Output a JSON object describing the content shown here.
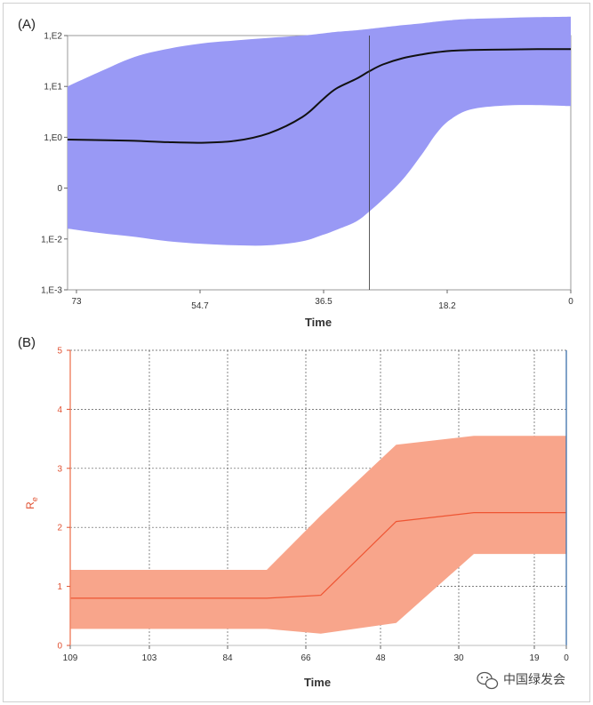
{
  "chart_data": [
    {
      "panel_label": "(A)",
      "type": "area",
      "scale": "log",
      "xlabel": "Time",
      "x_reversed": true,
      "x_ticks": [
        "73",
        "54.7",
        "36.5",
        "18.2",
        "0"
      ],
      "y_ticks": [
        "1,E-3",
        "1,E-2",
        "0",
        "1,E0",
        "1,E1",
        "1,E2"
      ],
      "ylim": [
        0.001,
        100
      ],
      "xlim": [
        75,
        0
      ],
      "vertical_line_x": 30,
      "colors": {
        "band": "#9999f5",
        "median": "#111111"
      },
      "series": [
        {
          "x": [
            75,
            70,
            65,
            60,
            55,
            50,
            45,
            40,
            37,
            35,
            32,
            30,
            28,
            25,
            22,
            20,
            18,
            15,
            10,
            5,
            0
          ],
          "median": [
            0.9,
            0.88,
            0.85,
            0.8,
            0.78,
            0.85,
            1.2,
            2.5,
            5.5,
            9,
            14,
            20,
            27,
            36,
            43,
            47,
            50,
            52,
            53,
            54,
            54
          ],
          "lower": [
            0.016,
            0.013,
            0.011,
            0.009,
            0.008,
            0.0075,
            0.0075,
            0.009,
            0.012,
            0.015,
            0.022,
            0.035,
            0.06,
            0.15,
            0.5,
            1.2,
            2.2,
            3.5,
            4.2,
            4.3,
            4.1
          ],
          "upper": [
            10,
            20,
            38,
            55,
            70,
            80,
            90,
            100,
            110,
            118,
            127,
            135,
            145,
            160,
            175,
            188,
            200,
            212,
            222,
            230,
            235
          ]
        }
      ]
    },
    {
      "panel_label": "(B)",
      "type": "area",
      "xlabel": "Time",
      "ylabel": "R",
      "ylabel_sub": "e",
      "x_reversed": true,
      "x_ticks": [
        "109",
        "103",
        "84",
        "66",
        "48",
        "30",
        "19",
        "0"
      ],
      "y_ticks": [
        "0",
        "1",
        "2",
        "3",
        "4",
        "5"
      ],
      "ylim": [
        0,
        5
      ],
      "colors": {
        "band": "#f8a58b",
        "median": "#ee5533"
      },
      "series": [
        {
          "x_index": [
            0,
            1.2,
            2.5,
            3.2,
            4.2,
            5.2,
            6.2,
            7
          ],
          "median": [
            0.8,
            0.8,
            0.8,
            0.85,
            2.1,
            2.25,
            2.25,
            2.25
          ],
          "lower": [
            0.28,
            0.28,
            0.28,
            0.2,
            0.38,
            1.55,
            1.55,
            1.55
          ],
          "upper": [
            1.28,
            1.28,
            1.28,
            2.2,
            3.4,
            3.55,
            3.55,
            3.55
          ]
        }
      ]
    }
  ],
  "watermark": {
    "icon": "wechat-icon",
    "text": "中国绿发会"
  }
}
